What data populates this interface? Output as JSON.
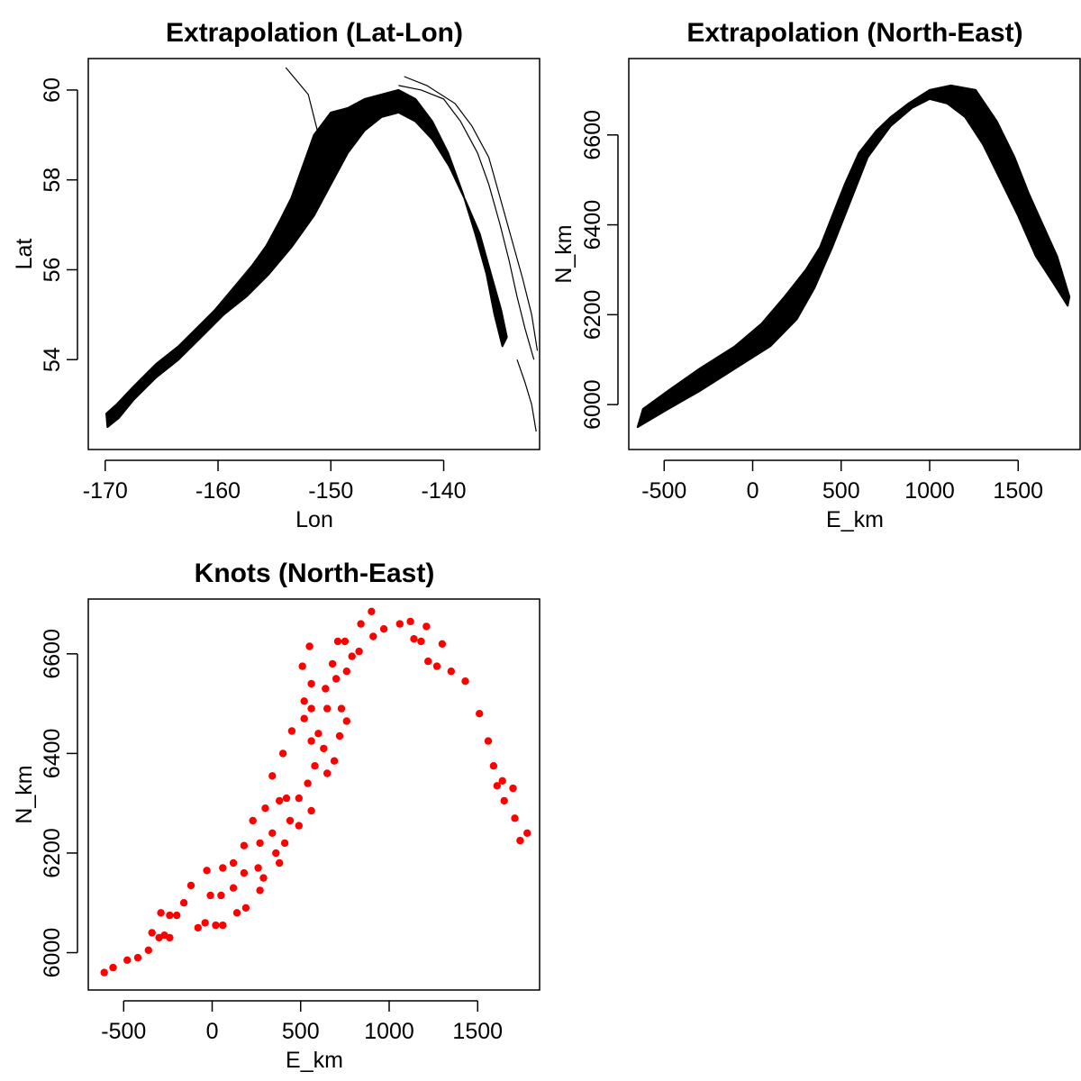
{
  "chart_data": [
    {
      "type": "area",
      "title": "Extrapolation (Lat-Lon)",
      "xlabel": "Lon",
      "ylabel": "Lat",
      "xlim": [
        -171.5,
        -131.5
      ],
      "ylim": [
        52.0,
        60.7
      ],
      "xticks": [
        -170,
        -160,
        -150,
        -140
      ],
      "yticks": [
        54,
        56,
        58,
        60
      ],
      "grid": false,
      "legend": "none",
      "fill_color": "#000000",
      "region_outline": [
        [
          -169.8,
          52.5
        ],
        [
          -168.8,
          52.7
        ],
        [
          -167.5,
          53.1
        ],
        [
          -165.5,
          53.6
        ],
        [
          -163.5,
          54.0
        ],
        [
          -161.5,
          54.5
        ],
        [
          -159.5,
          55.0
        ],
        [
          -157.5,
          55.4
        ],
        [
          -155.5,
          55.9
        ],
        [
          -153.5,
          56.5
        ],
        [
          -151.5,
          57.2
        ],
        [
          -150.0,
          57.9
        ],
        [
          -148.5,
          58.6
        ],
        [
          -147.0,
          59.1
        ],
        [
          -145.5,
          59.4
        ],
        [
          -144.0,
          59.5
        ],
        [
          -142.5,
          59.3
        ],
        [
          -141.0,
          58.9
        ],
        [
          -139.5,
          58.3
        ],
        [
          -138.0,
          57.5
        ],
        [
          -136.8,
          56.8
        ],
        [
          -135.8,
          55.9
        ],
        [
          -134.9,
          55.1
        ],
        [
          -134.4,
          54.5
        ],
        [
          -134.8,
          54.3
        ],
        [
          -135.5,
          55.0
        ],
        [
          -136.2,
          55.9
        ],
        [
          -137.2,
          56.8
        ],
        [
          -138.3,
          57.7
        ],
        [
          -139.6,
          58.6
        ],
        [
          -141.0,
          59.3
        ],
        [
          -142.5,
          59.8
        ],
        [
          -144.0,
          60.0
        ],
        [
          -145.5,
          59.9
        ],
        [
          -147.0,
          59.8
        ],
        [
          -148.5,
          59.6
        ],
        [
          -150.0,
          59.5
        ],
        [
          -151.5,
          59.0
        ],
        [
          -152.5,
          58.3
        ],
        [
          -153.5,
          57.6
        ],
        [
          -154.5,
          57.1
        ],
        [
          -156.0,
          56.4
        ],
        [
          -157.5,
          55.9
        ],
        [
          -159.5,
          55.3
        ],
        [
          -161.5,
          54.8
        ],
        [
          -163.5,
          54.3
        ],
        [
          -165.5,
          53.9
        ],
        [
          -167.5,
          53.4
        ],
        [
          -169.0,
          53.0
        ],
        [
          -169.9,
          52.8
        ]
      ],
      "coastline_polylines": [
        [
          [
            -165.0,
            53.9
          ],
          [
            -163.0,
            54.4
          ],
          [
            -161.0,
            54.9
          ],
          [
            -159.0,
            55.5
          ],
          [
            -157.0,
            56.1
          ],
          [
            -155.0,
            56.8
          ],
          [
            -153.5,
            57.5
          ],
          [
            -152.0,
            58.3
          ],
          [
            -151.0,
            58.9
          ],
          [
            -151.5,
            59.4
          ],
          [
            -152.0,
            59.9
          ],
          [
            -153.0,
            60.2
          ],
          [
            -154.0,
            60.5
          ]
        ],
        [
          [
            -144.0,
            60.1
          ],
          [
            -142.0,
            60.0
          ],
          [
            -140.0,
            59.8
          ],
          [
            -138.5,
            59.3
          ],
          [
            -137.0,
            58.6
          ],
          [
            -136.0,
            57.9
          ],
          [
            -135.0,
            57.0
          ],
          [
            -134.2,
            56.2
          ],
          [
            -133.5,
            55.4
          ],
          [
            -132.8,
            54.7
          ],
          [
            -132.0,
            54.0
          ]
        ],
        [
          [
            -143.5,
            60.3
          ],
          [
            -141.5,
            60.1
          ],
          [
            -139.0,
            59.7
          ],
          [
            -137.5,
            59.2
          ],
          [
            -136.0,
            58.5
          ],
          [
            -135.0,
            57.6
          ],
          [
            -134.0,
            56.7
          ],
          [
            -133.0,
            55.8
          ],
          [
            -132.2,
            55.0
          ],
          [
            -131.7,
            54.2
          ]
        ],
        [
          [
            -133.5,
            54.0
          ],
          [
            -132.8,
            53.5
          ],
          [
            -132.2,
            53.0
          ],
          [
            -131.8,
            52.4
          ]
        ]
      ]
    },
    {
      "type": "area",
      "title": "Extrapolation (North-East)",
      "xlabel": "E_km",
      "ylabel": "N_km",
      "xlim": [
        -700,
        1850
      ],
      "ylim": [
        5900,
        6770
      ],
      "xticks": [
        -500,
        0,
        500,
        1000,
        1500
      ],
      "yticks": [
        6000,
        6200,
        6400,
        6600
      ],
      "grid": false,
      "legend": "none",
      "fill_color": "#000000",
      "region_outline": [
        [
          -650,
          5950
        ],
        [
          -500,
          5985
        ],
        [
          -300,
          6030
        ],
        [
          -100,
          6080
        ],
        [
          100,
          6130
        ],
        [
          250,
          6190
        ],
        [
          350,
          6260
        ],
        [
          450,
          6350
        ],
        [
          550,
          6450
        ],
        [
          650,
          6550
        ],
        [
          780,
          6620
        ],
        [
          900,
          6660
        ],
        [
          1000,
          6680
        ],
        [
          1100,
          6670
        ],
        [
          1200,
          6640
        ],
        [
          1300,
          6580
        ],
        [
          1400,
          6500
        ],
        [
          1500,
          6420
        ],
        [
          1600,
          6330
        ],
        [
          1700,
          6270
        ],
        [
          1780,
          6220
        ],
        [
          1790,
          6240
        ],
        [
          1720,
          6330
        ],
        [
          1640,
          6400
        ],
        [
          1560,
          6470
        ],
        [
          1480,
          6550
        ],
        [
          1380,
          6630
        ],
        [
          1260,
          6700
        ],
        [
          1120,
          6710
        ],
        [
          1000,
          6700
        ],
        [
          880,
          6670
        ],
        [
          780,
          6640
        ],
        [
          700,
          6610
        ],
        [
          600,
          6560
        ],
        [
          520,
          6490
        ],
        [
          450,
          6420
        ],
        [
          380,
          6350
        ],
        [
          300,
          6300
        ],
        [
          180,
          6240
        ],
        [
          50,
          6180
        ],
        [
          -100,
          6130
        ],
        [
          -300,
          6080
        ],
        [
          -480,
          6030
        ],
        [
          -620,
          5990
        ]
      ]
    },
    {
      "type": "scatter",
      "title": "Knots (North-East)",
      "xlabel": "E_km",
      "ylabel": "N_km",
      "xlim": [
        -700,
        1850
      ],
      "ylim": [
        5925,
        6710
      ],
      "xticks": [
        -500,
        0,
        500,
        1000,
        1500
      ],
      "yticks": [
        6000,
        6200,
        6400,
        6600
      ],
      "grid": false,
      "legend": "none",
      "point_color": "#ff0000",
      "points": [
        [
          -610,
          5960
        ],
        [
          -560,
          5970
        ],
        [
          -480,
          5985
        ],
        [
          -420,
          5990
        ],
        [
          -360,
          6005
        ],
        [
          -340,
          6040
        ],
        [
          -300,
          6030
        ],
        [
          -270,
          6035
        ],
        [
          -240,
          6030
        ],
        [
          -290,
          6080
        ],
        [
          -240,
          6075
        ],
        [
          -200,
          6075
        ],
        [
          -160,
          6100
        ],
        [
          -120,
          6135
        ],
        [
          -80,
          6050
        ],
        [
          -40,
          6060
        ],
        [
          20,
          6055
        ],
        [
          60,
          6055
        ],
        [
          -30,
          6165
        ],
        [
          -10,
          6115
        ],
        [
          50,
          6115
        ],
        [
          60,
          6170
        ],
        [
          120,
          6180
        ],
        [
          120,
          6130
        ],
        [
          140,
          6080
        ],
        [
          190,
          6090
        ],
        [
          180,
          6160
        ],
        [
          180,
          6215
        ],
        [
          230,
          6265
        ],
        [
          260,
          6170
        ],
        [
          270,
          6125
        ],
        [
          290,
          6150
        ],
        [
          270,
          6220
        ],
        [
          300,
          6290
        ],
        [
          340,
          6240
        ],
        [
          340,
          6355
        ],
        [
          380,
          6305
        ],
        [
          360,
          6200
        ],
        [
          380,
          6180
        ],
        [
          400,
          6400
        ],
        [
          420,
          6310
        ],
        [
          410,
          6220
        ],
        [
          440,
          6265
        ],
        [
          450,
          6445
        ],
        [
          490,
          6310
        ],
        [
          490,
          6255
        ],
        [
          510,
          6575
        ],
        [
          520,
          6505
        ],
        [
          520,
          6470
        ],
        [
          540,
          6340
        ],
        [
          550,
          6615
        ],
        [
          560,
          6540
        ],
        [
          560,
          6490
        ],
        [
          560,
          6285
        ],
        [
          560,
          6425
        ],
        [
          580,
          6375
        ],
        [
          600,
          6440
        ],
        [
          630,
          6410
        ],
        [
          640,
          6530
        ],
        [
          650,
          6490
        ],
        [
          650,
          6360
        ],
        [
          680,
          6580
        ],
        [
          690,
          6385
        ],
        [
          700,
          6550
        ],
        [
          710,
          6625
        ],
        [
          720,
          6435
        ],
        [
          730,
          6490
        ],
        [
          750,
          6625
        ],
        [
          760,
          6565
        ],
        [
          760,
          6465
        ],
        [
          790,
          6595
        ],
        [
          830,
          6605
        ],
        [
          840,
          6660
        ],
        [
          900,
          6685
        ],
        [
          910,
          6635
        ],
        [
          970,
          6650
        ],
        [
          1060,
          6660
        ],
        [
          1120,
          6665
        ],
        [
          1140,
          6630
        ],
        [
          1180,
          6625
        ],
        [
          1210,
          6655
        ],
        [
          1220,
          6585
        ],
        [
          1270,
          6575
        ],
        [
          1300,
          6620
        ],
        [
          1350,
          6565
        ],
        [
          1430,
          6545
        ],
        [
          1510,
          6480
        ],
        [
          1560,
          6425
        ],
        [
          1590,
          6375
        ],
        [
          1610,
          6335
        ],
        [
          1640,
          6345
        ],
        [
          1650,
          6305
        ],
        [
          1700,
          6330
        ],
        [
          1710,
          6270
        ],
        [
          1740,
          6225
        ],
        [
          1780,
          6240
        ]
      ]
    }
  ]
}
